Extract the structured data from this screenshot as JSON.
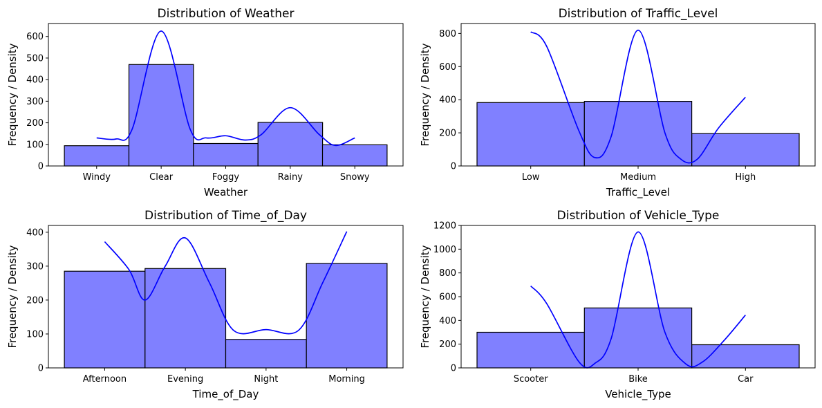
{
  "figure": {
    "panels": [
      {
        "title": "Distribution of Weather",
        "xlabel": "Weather",
        "ylabel": "Frequency / Density"
      },
      {
        "title": "Distribution of Traffic_Level",
        "xlabel": "Traffic_Level",
        "ylabel": "Frequency / Density"
      },
      {
        "title": "Distribution of Time_of_Day",
        "xlabel": "Time_of_Day",
        "ylabel": "Frequency / Density"
      },
      {
        "title": "Distribution of Vehicle_Type",
        "xlabel": "Vehicle_Type",
        "ylabel": "Frequency / Density"
      }
    ]
  },
  "chart_data": [
    {
      "type": "bar",
      "title": "Distribution of Weather",
      "xlabel": "Weather",
      "ylabel": "Frequency / Density",
      "categories": [
        "Windy",
        "Clear",
        "Foggy",
        "Rainy",
        "Snowy"
      ],
      "values": [
        94,
        470,
        104,
        202,
        98
      ],
      "ylim": [
        0,
        660
      ],
      "yticks": [
        0,
        100,
        200,
        300,
        400,
        500,
        600
      ],
      "bar_color": "#8080ff",
      "kde_color": "#0000ff",
      "kde": [
        [
          0,
          130
        ],
        [
          0.3,
          125
        ],
        [
          0.55,
          170
        ],
        [
          1,
          625
        ],
        [
          1.45,
          170
        ],
        [
          1.7,
          130
        ],
        [
          2,
          140
        ],
        [
          2.3,
          120
        ],
        [
          2.55,
          145
        ],
        [
          3,
          270
        ],
        [
          3.45,
          145
        ],
        [
          3.7,
          95
        ],
        [
          4,
          130
        ]
      ]
    },
    {
      "type": "bar",
      "title": "Distribution of Traffic_Level",
      "xlabel": "Traffic_Level",
      "ylabel": "Frequency / Density",
      "categories": [
        "Low",
        "Medium",
        "High"
      ],
      "values": [
        383,
        390,
        196
      ],
      "ylim": [
        0,
        860
      ],
      "yticks": [
        0,
        200,
        400,
        600,
        800
      ],
      "bar_color": "#8080ff",
      "kde_color": "#0000ff",
      "kde": [
        [
          0,
          810
        ],
        [
          0.15,
          720
        ],
        [
          0.45,
          210
        ],
        [
          0.6,
          50
        ],
        [
          0.75,
          180
        ],
        [
          1,
          820
        ],
        [
          1.25,
          200
        ],
        [
          1.4,
          40
        ],
        [
          1.55,
          40
        ],
        [
          1.75,
          230
        ],
        [
          2,
          415
        ]
      ]
    },
    {
      "type": "bar",
      "title": "Distribution of Time_of_Day",
      "xlabel": "Time_of_Day",
      "ylabel": "Frequency / Density",
      "categories": [
        "Afternoon",
        "Evening",
        "Night",
        "Morning"
      ],
      "values": [
        285,
        293,
        84,
        308
      ],
      "ylim": [
        0,
        420
      ],
      "yticks": [
        0,
        100,
        200,
        300,
        400
      ],
      "bar_color": "#8080ff",
      "kde_color": "#0000ff",
      "kde": [
        [
          0,
          372
        ],
        [
          0.3,
          290
        ],
        [
          0.5,
          200
        ],
        [
          0.75,
          300
        ],
        [
          1,
          383
        ],
        [
          1.3,
          250
        ],
        [
          1.6,
          110
        ],
        [
          2,
          113
        ],
        [
          2.4,
          110
        ],
        [
          2.7,
          250
        ],
        [
          3,
          402
        ]
      ]
    },
    {
      "type": "bar",
      "title": "Distribution of Vehicle_Type",
      "xlabel": "Vehicle_Type",
      "ylabel": "Frequency / Density",
      "categories": [
        "Scooter",
        "Bike",
        "Car"
      ],
      "values": [
        300,
        505,
        195
      ],
      "ylim": [
        0,
        1200
      ],
      "yticks": [
        0,
        200,
        400,
        600,
        800,
        1000,
        1200
      ],
      "bar_color": "#8080ff",
      "kde_color": "#0000ff",
      "kde": [
        [
          0,
          690
        ],
        [
          0.15,
          540
        ],
        [
          0.45,
          50
        ],
        [
          0.6,
          40
        ],
        [
          0.75,
          250
        ],
        [
          1,
          1145
        ],
        [
          1.25,
          300
        ],
        [
          1.45,
          30
        ],
        [
          1.6,
          50
        ],
        [
          1.8,
          230
        ],
        [
          2,
          445
        ]
      ]
    }
  ]
}
